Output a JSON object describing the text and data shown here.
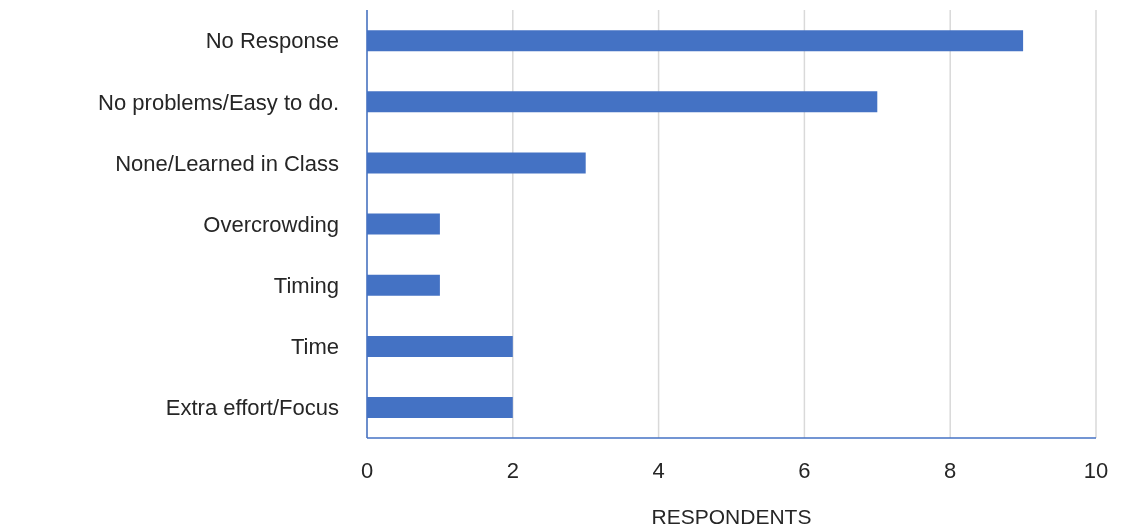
{
  "chart_data": {
    "type": "bar",
    "orientation": "horizontal",
    "xlabel": "RESPONDENTS",
    "categories": [
      "No Response",
      "No problems/Easy to do.",
      "None/Learned in Class",
      "Overcrowding",
      "Timing",
      "Time",
      "Extra effort/Focus"
    ],
    "values": [
      9,
      7,
      3,
      1,
      1,
      2,
      2
    ],
    "color": "#4472c4",
    "xlim": [
      0,
      10
    ],
    "xticks": [
      0,
      2,
      4,
      6,
      8,
      10
    ],
    "grid": "x",
    "legend": false
  }
}
